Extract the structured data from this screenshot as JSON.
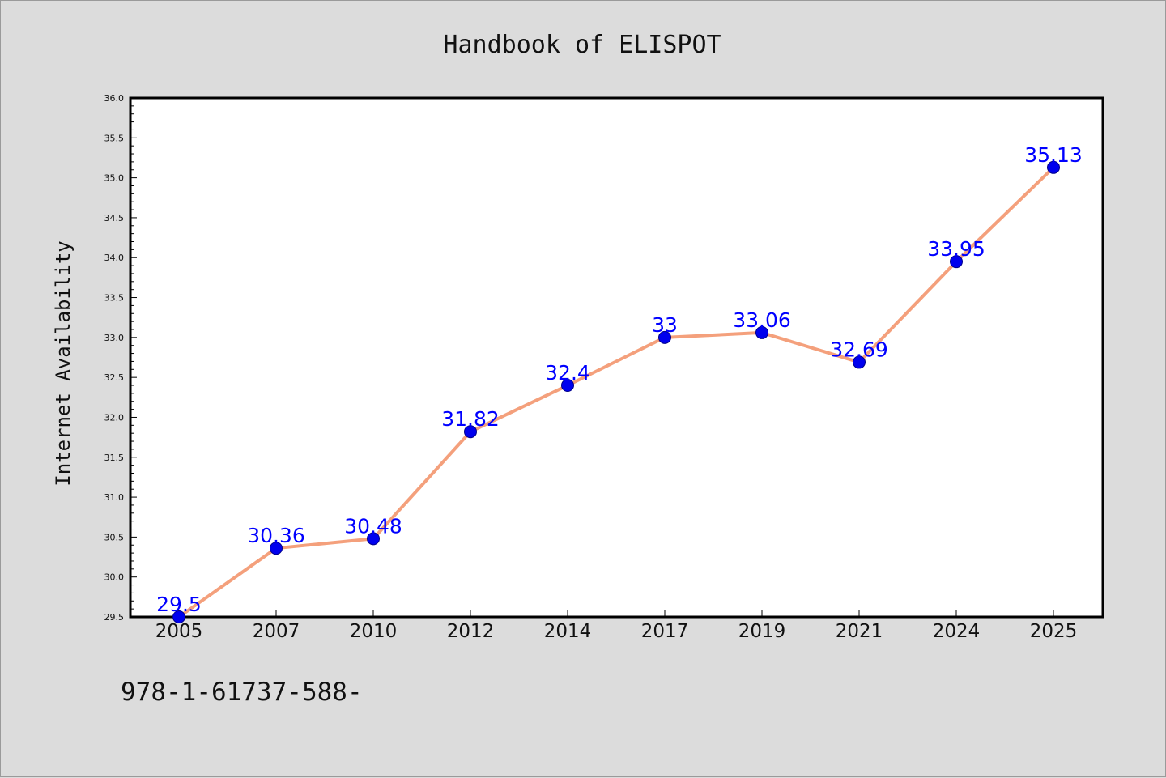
{
  "chart_data": {
    "type": "line",
    "title": "Handbook of ELISPOT",
    "xlabel": "",
    "ylabel": "Internet Availability",
    "categories": [
      "2005",
      "2007",
      "2010",
      "2012",
      "2014",
      "2017",
      "2019",
      "2021",
      "2024",
      "2025"
    ],
    "values": [
      29.5,
      30.36,
      30.48,
      31.82,
      32.4,
      33,
      33.06,
      32.69,
      33.95,
      35.13
    ],
    "data_labels": [
      "29.5",
      "30.36",
      "30.48",
      "31.82",
      "32.4",
      "33",
      "33.06",
      "32.69",
      "33.95",
      "35.13"
    ],
    "ylim": [
      29.5,
      36.0
    ],
    "yticks": [
      "29.5",
      "30.0",
      "30.5",
      "31.0",
      "31.5",
      "32.0",
      "32.5",
      "33.0",
      "33.5",
      "34.0",
      "34.5",
      "35.0",
      "35.5",
      "36.0"
    ],
    "grid": false,
    "legend": "none",
    "line_color": "#f4a07c",
    "marker_color": "#0000ee",
    "label_color": "#0000ff"
  },
  "footer": {
    "text": "978-1-61737-588-"
  }
}
